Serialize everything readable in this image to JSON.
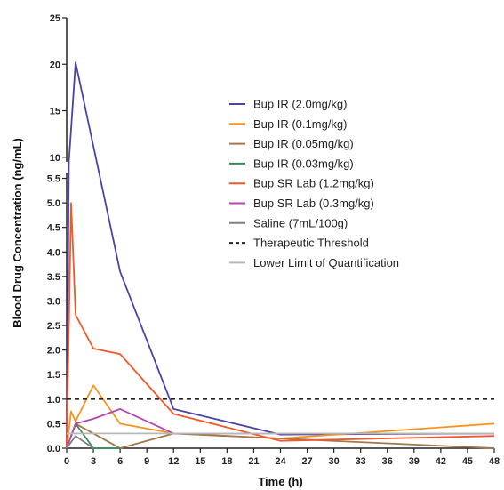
{
  "chart_data": {
    "type": "line",
    "xlabel": "Time (h)",
    "ylabel": "Blood Drug Concentration (ng/mL)",
    "xlim": [
      0,
      48
    ],
    "x_ticks": [
      "0",
      "3",
      "6",
      "9",
      "12",
      "15",
      "18",
      "21",
      "24",
      "27",
      "30",
      "33",
      "36",
      "39",
      "42",
      "45",
      "48"
    ],
    "y_ticks_lower": [
      "0.0",
      "0.5",
      "1.0",
      "1.5",
      "2.0",
      "2.5",
      "3.0",
      "3.5",
      "4.0",
      "4.5",
      "5.0",
      "5.5"
    ],
    "y_ticks_upper": [
      "10",
      "15",
      "20",
      "25"
    ],
    "y_axis_break": {
      "lower_range": [
        0,
        5.6
      ],
      "upper_range": [
        9.5,
        25
      ]
    },
    "legend_position": "upper-right",
    "series": [
      {
        "name": "Bup IR (2.0mg/kg)",
        "color": "#4a43a8",
        "dash": "solid",
        "x": [
          0,
          0.25,
          1,
          6,
          12,
          24,
          48
        ],
        "y": [
          0,
          9.5,
          20.2,
          3.6,
          0.8,
          0.28,
          0.3
        ]
      },
      {
        "name": "Bup IR (0.1mg/kg)",
        "color": "#f7941d",
        "dash": "solid",
        "x": [
          0,
          0.5,
          1,
          3,
          6,
          12,
          24,
          48
        ],
        "y": [
          0,
          0.75,
          0.55,
          1.28,
          0.5,
          0.3,
          0.2,
          0.5
        ]
      },
      {
        "name": "Bup IR (0.05mg/kg)",
        "color": "#a0784a",
        "dash": "solid",
        "x": [
          0,
          1,
          3,
          6,
          12,
          24,
          48
        ],
        "y": [
          0,
          0.5,
          0.3,
          0.0,
          0.3,
          0.2,
          0.0
        ]
      },
      {
        "name": "Bup IR (0.03mg/kg)",
        "color": "#3a8a5a",
        "dash": "solid",
        "x": [
          0,
          1,
          3,
          6
        ],
        "y": [
          0,
          0.5,
          0.0,
          0.0
        ]
      },
      {
        "name": "Bup SR Lab (1.2mg/kg)",
        "color": "#f05a28",
        "dash": "solid",
        "x": [
          0,
          0.5,
          1,
          3,
          6,
          12,
          24,
          48
        ],
        "y": [
          0,
          5.0,
          2.72,
          2.03,
          1.92,
          0.7,
          0.15,
          0.25
        ]
      },
      {
        "name": "Bup SR Lab (0.3mg/kg)",
        "color": "#b04ab0",
        "dash": "solid",
        "x": [
          0,
          1,
          3,
          6,
          12,
          24,
          48
        ],
        "y": [
          0,
          0.5,
          0.6,
          0.8,
          0.3,
          0.3,
          0.3
        ]
      },
      {
        "name": "Saline (7mL/100g)",
        "color": "#808080",
        "dash": "solid",
        "x": [
          0,
          1,
          3
        ],
        "y": [
          0,
          0.25,
          0.0
        ]
      },
      {
        "name": "Therapeutic Threshold",
        "color": "#222222",
        "dash": "dashed",
        "x": [
          0,
          48
        ],
        "y": [
          1.0,
          1.0
        ]
      },
      {
        "name": "Lower Limit of Quantification",
        "color": "#b8b8b8",
        "dash": "solid",
        "x": [
          0,
          48
        ],
        "y": [
          0.3,
          0.3
        ]
      }
    ]
  }
}
